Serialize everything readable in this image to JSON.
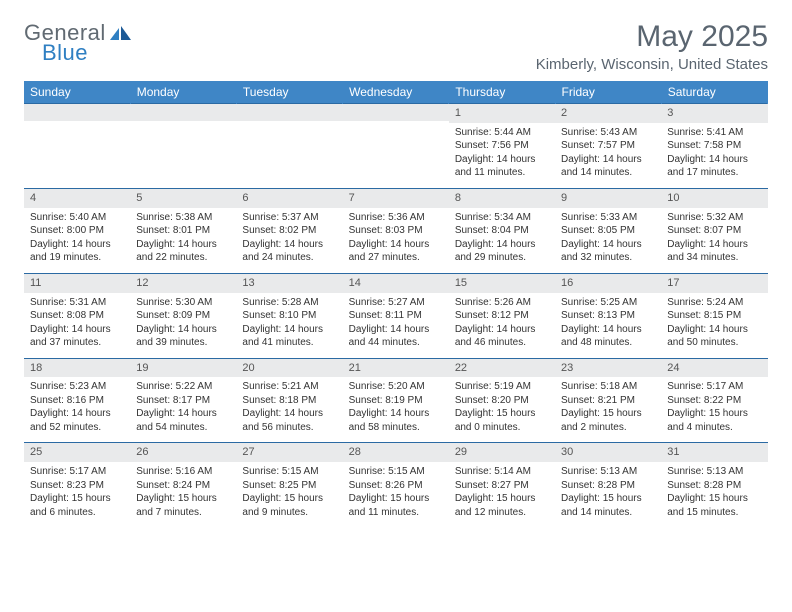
{
  "brand": {
    "word1": "General",
    "word2": "Blue"
  },
  "title": {
    "month": "May 2025",
    "location": "Kimberly, Wisconsin, United States"
  },
  "colors": {
    "header_bg": "#3f86c6",
    "header_text": "#ffffff",
    "row_divider": "#2b6aa3",
    "daynum_bg": "#e9eaeb",
    "text": "#333333",
    "logo_gray": "#616a72",
    "logo_blue": "#2f7fc2"
  },
  "weekdays": [
    "Sunday",
    "Monday",
    "Tuesday",
    "Wednesday",
    "Thursday",
    "Friday",
    "Saturday"
  ],
  "weeks": [
    [
      {
        "n": "",
        "sr": "",
        "ss": "",
        "dl": ""
      },
      {
        "n": "",
        "sr": "",
        "ss": "",
        "dl": ""
      },
      {
        "n": "",
        "sr": "",
        "ss": "",
        "dl": ""
      },
      {
        "n": "",
        "sr": "",
        "ss": "",
        "dl": ""
      },
      {
        "n": "1",
        "sr": "5:44 AM",
        "ss": "7:56 PM",
        "dl": "14 hours and 11 minutes."
      },
      {
        "n": "2",
        "sr": "5:43 AM",
        "ss": "7:57 PM",
        "dl": "14 hours and 14 minutes."
      },
      {
        "n": "3",
        "sr": "5:41 AM",
        "ss": "7:58 PM",
        "dl": "14 hours and 17 minutes."
      }
    ],
    [
      {
        "n": "4",
        "sr": "5:40 AM",
        "ss": "8:00 PM",
        "dl": "14 hours and 19 minutes."
      },
      {
        "n": "5",
        "sr": "5:38 AM",
        "ss": "8:01 PM",
        "dl": "14 hours and 22 minutes."
      },
      {
        "n": "6",
        "sr": "5:37 AM",
        "ss": "8:02 PM",
        "dl": "14 hours and 24 minutes."
      },
      {
        "n": "7",
        "sr": "5:36 AM",
        "ss": "8:03 PM",
        "dl": "14 hours and 27 minutes."
      },
      {
        "n": "8",
        "sr": "5:34 AM",
        "ss": "8:04 PM",
        "dl": "14 hours and 29 minutes."
      },
      {
        "n": "9",
        "sr": "5:33 AM",
        "ss": "8:05 PM",
        "dl": "14 hours and 32 minutes."
      },
      {
        "n": "10",
        "sr": "5:32 AM",
        "ss": "8:07 PM",
        "dl": "14 hours and 34 minutes."
      }
    ],
    [
      {
        "n": "11",
        "sr": "5:31 AM",
        "ss": "8:08 PM",
        "dl": "14 hours and 37 minutes."
      },
      {
        "n": "12",
        "sr": "5:30 AM",
        "ss": "8:09 PM",
        "dl": "14 hours and 39 minutes."
      },
      {
        "n": "13",
        "sr": "5:28 AM",
        "ss": "8:10 PM",
        "dl": "14 hours and 41 minutes."
      },
      {
        "n": "14",
        "sr": "5:27 AM",
        "ss": "8:11 PM",
        "dl": "14 hours and 44 minutes."
      },
      {
        "n": "15",
        "sr": "5:26 AM",
        "ss": "8:12 PM",
        "dl": "14 hours and 46 minutes."
      },
      {
        "n": "16",
        "sr": "5:25 AM",
        "ss": "8:13 PM",
        "dl": "14 hours and 48 minutes."
      },
      {
        "n": "17",
        "sr": "5:24 AM",
        "ss": "8:15 PM",
        "dl": "14 hours and 50 minutes."
      }
    ],
    [
      {
        "n": "18",
        "sr": "5:23 AM",
        "ss": "8:16 PM",
        "dl": "14 hours and 52 minutes."
      },
      {
        "n": "19",
        "sr": "5:22 AM",
        "ss": "8:17 PM",
        "dl": "14 hours and 54 minutes."
      },
      {
        "n": "20",
        "sr": "5:21 AM",
        "ss": "8:18 PM",
        "dl": "14 hours and 56 minutes."
      },
      {
        "n": "21",
        "sr": "5:20 AM",
        "ss": "8:19 PM",
        "dl": "14 hours and 58 minutes."
      },
      {
        "n": "22",
        "sr": "5:19 AM",
        "ss": "8:20 PM",
        "dl": "15 hours and 0 minutes."
      },
      {
        "n": "23",
        "sr": "5:18 AM",
        "ss": "8:21 PM",
        "dl": "15 hours and 2 minutes."
      },
      {
        "n": "24",
        "sr": "5:17 AM",
        "ss": "8:22 PM",
        "dl": "15 hours and 4 minutes."
      }
    ],
    [
      {
        "n": "25",
        "sr": "5:17 AM",
        "ss": "8:23 PM",
        "dl": "15 hours and 6 minutes."
      },
      {
        "n": "26",
        "sr": "5:16 AM",
        "ss": "8:24 PM",
        "dl": "15 hours and 7 minutes."
      },
      {
        "n": "27",
        "sr": "5:15 AM",
        "ss": "8:25 PM",
        "dl": "15 hours and 9 minutes."
      },
      {
        "n": "28",
        "sr": "5:15 AM",
        "ss": "8:26 PM",
        "dl": "15 hours and 11 minutes."
      },
      {
        "n": "29",
        "sr": "5:14 AM",
        "ss": "8:27 PM",
        "dl": "15 hours and 12 minutes."
      },
      {
        "n": "30",
        "sr": "5:13 AM",
        "ss": "8:28 PM",
        "dl": "15 hours and 14 minutes."
      },
      {
        "n": "31",
        "sr": "5:13 AM",
        "ss": "8:28 PM",
        "dl": "15 hours and 15 minutes."
      }
    ]
  ],
  "labels": {
    "sunrise": "Sunrise:",
    "sunset": "Sunset:",
    "daylight": "Daylight:"
  }
}
